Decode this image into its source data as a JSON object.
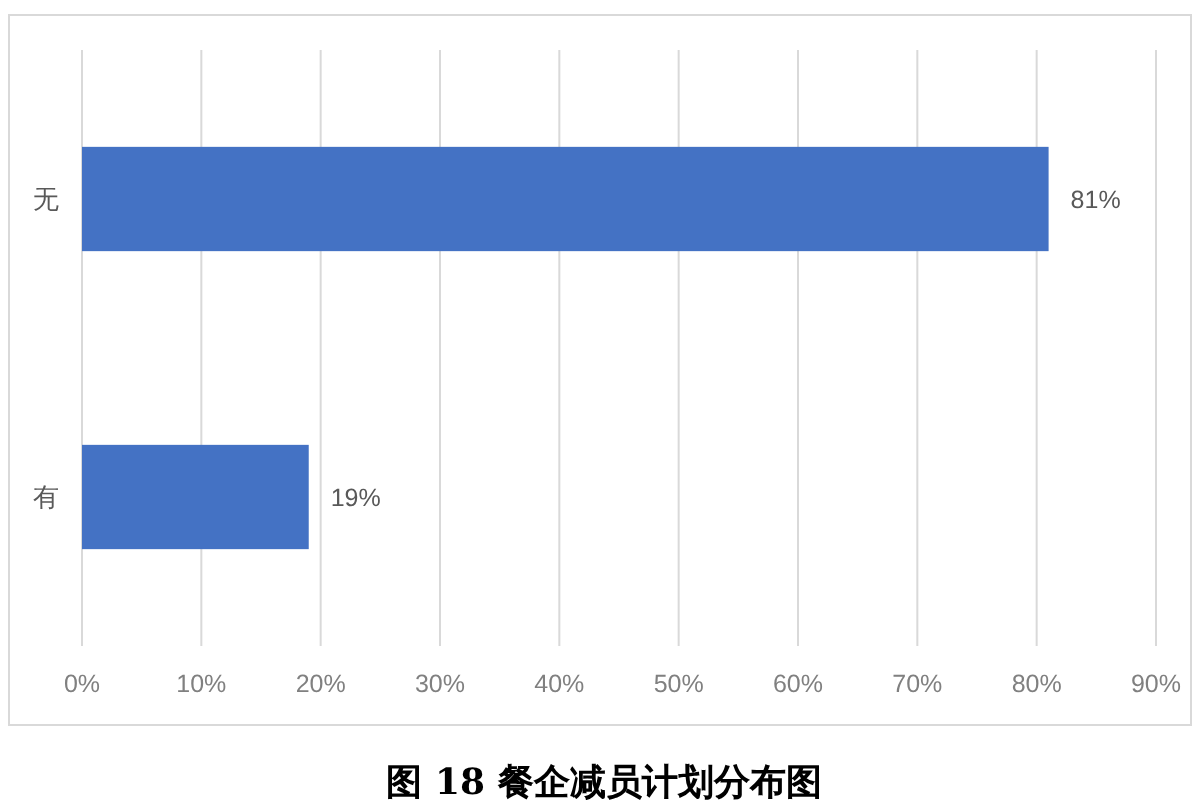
{
  "chart_data": {
    "type": "bar",
    "orientation": "horizontal",
    "title": "图 18 餐企减员计划分布图",
    "categories": [
      "无",
      "有"
    ],
    "values": [
      81,
      19
    ],
    "value_labels": [
      "81%",
      "19%"
    ],
    "color": "#4472c4",
    "xlim": [
      0,
      90
    ],
    "xticks": [
      {
        "value": 0,
        "label": "0%"
      },
      {
        "value": 10,
        "label": "10%"
      },
      {
        "value": 20,
        "label": "20%"
      },
      {
        "value": 30,
        "label": "30%"
      },
      {
        "value": 40,
        "label": "40%"
      },
      {
        "value": 50,
        "label": "50%"
      },
      {
        "value": 60,
        "label": "60%"
      },
      {
        "value": 70,
        "label": "70%"
      },
      {
        "value": 80,
        "label": "80%"
      },
      {
        "value": 90,
        "label": "90%"
      }
    ],
    "grid": "x"
  }
}
